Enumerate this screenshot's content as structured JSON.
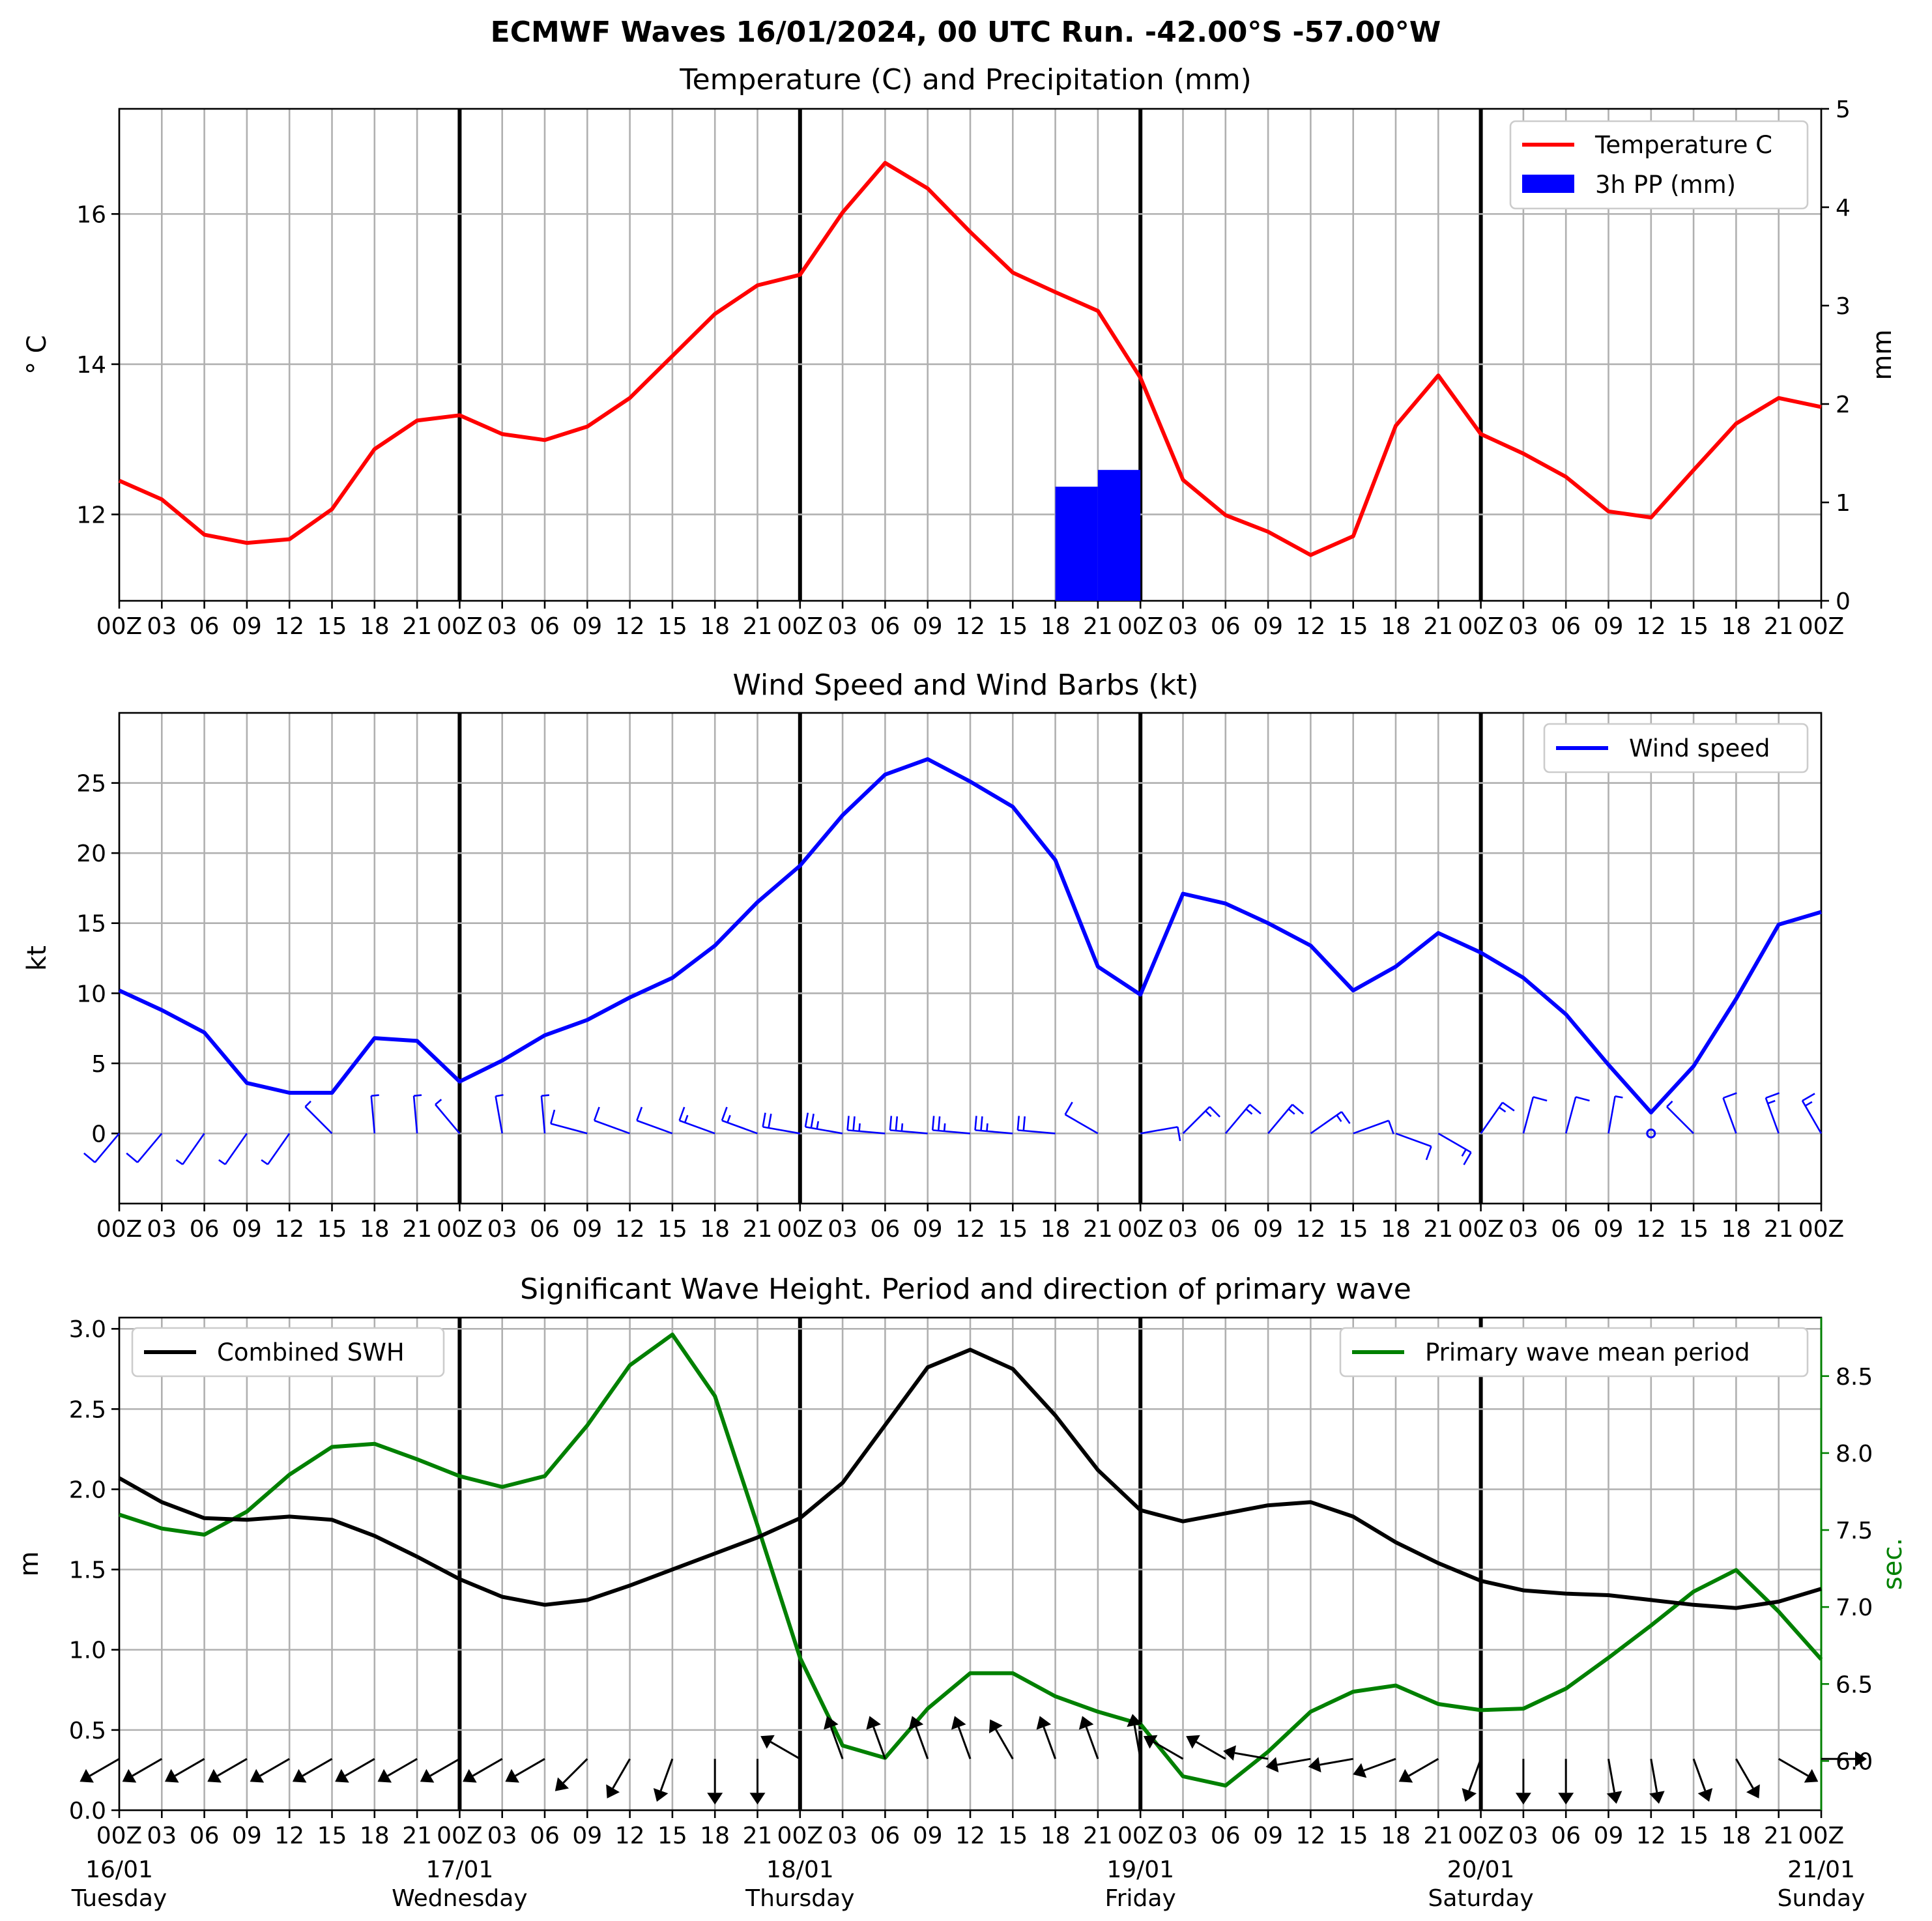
{
  "title": "ECMWF Waves 16/01/2024, 00 UTC Run. -42.00°S -57.00°W",
  "x_tick_labels": [
    "00Z",
    "03",
    "06",
    "09",
    "12",
    "15",
    "18",
    "21",
    "00Z",
    "03",
    "06",
    "09",
    "12",
    "15",
    "18",
    "21",
    "00Z",
    "03",
    "06",
    "09",
    "12",
    "15",
    "18",
    "21",
    "00Z",
    "03",
    "06",
    "09",
    "12",
    "15",
    "18",
    "21",
    "00Z",
    "03",
    "06",
    "09",
    "12",
    "15",
    "18",
    "21",
    "00Z"
  ],
  "day_labels": [
    {
      "date": "16/01",
      "day": "Tuesday"
    },
    {
      "date": "17/01",
      "day": "Wednesday"
    },
    {
      "date": "18/01",
      "day": "Thursday"
    },
    {
      "date": "19/01",
      "day": "Friday"
    },
    {
      "date": "20/01",
      "day": "Saturday"
    },
    {
      "date": "21/01",
      "day": "Sunday"
    }
  ],
  "colors": {
    "temperature": "#ff0000",
    "precipitation": "#0000ff",
    "wind": "#0000ff",
    "swh": "#000000",
    "period": "#008000"
  },
  "chart_data": [
    {
      "type": "line",
      "title": "Temperature (C) and Precipitation (mm)",
      "ylabel": "° C",
      "y2label": "mm",
      "ylim": [
        10.85,
        17.4
      ],
      "y2lim": [
        0,
        5
      ],
      "yticks": [
        "12",
        "14",
        "16"
      ],
      "y2ticks": [
        "0",
        "1",
        "2",
        "3",
        "4",
        "5"
      ],
      "legend_position": "upper right",
      "series": [
        {
          "name": "Temperature C",
          "values": [
            12.45,
            12.2,
            11.73,
            11.62,
            11.67,
            12.07,
            12.87,
            13.25,
            13.32,
            13.07,
            12.99,
            13.17,
            13.55,
            14.11,
            14.67,
            15.05,
            15.19,
            16.02,
            16.68,
            16.34,
            15.76,
            15.22,
            14.96,
            14.71,
            13.82,
            12.46,
            11.99,
            11.77,
            11.46,
            11.71,
            13.18,
            13.85,
            13.07,
            12.81,
            12.5,
            12.04,
            11.96,
            12.59,
            13.21,
            13.55,
            13.43
          ]
        },
        {
          "name": "3h PP (mm)",
          "type": "bar",
          "bars": [
            {
              "from_index": 22,
              "to_index": 23,
              "value": 1.16
            },
            {
              "from_index": 23,
              "to_index": 24,
              "value": 1.33
            }
          ]
        }
      ]
    },
    {
      "type": "line",
      "title": "Wind Speed and Wind Barbs (kt)",
      "ylabel": "kt",
      "ylim": [
        -5,
        30
      ],
      "yticks": [
        "0",
        "5",
        "10",
        "15",
        "20",
        "25"
      ],
      "legend_position": "upper right",
      "series": [
        {
          "name": "Wind speed",
          "values": [
            10.2,
            8.8,
            7.2,
            3.6,
            2.9,
            2.9,
            6.8,
            6.6,
            3.7,
            5.2,
            7.0,
            8.1,
            9.7,
            11.1,
            13.4,
            16.5,
            19.1,
            22.7,
            25.6,
            26.7,
            25.1,
            23.3,
            19.5,
            11.9,
            9.9,
            17.1,
            16.4,
            15.0,
            13.4,
            10.2,
            11.9,
            14.3,
            12.9,
            11.1,
            8.5,
            4.9,
            1.5,
            4.8,
            9.6,
            14.9,
            15.8
          ]
        }
      ],
      "barb_directions_deg": [
        220,
        220,
        215,
        215,
        215,
        315,
        355,
        355,
        320,
        350,
        355,
        285,
        290,
        290,
        290,
        290,
        280,
        280,
        275,
        275,
        275,
        275,
        275,
        300,
        80,
        45,
        40,
        40,
        55,
        70,
        110,
        120,
        35,
        15,
        15,
        10,
        null,
        315,
        340,
        340,
        330
      ]
    },
    {
      "type": "line",
      "title": "Significant Wave Height. Period and direction of primary wave",
      "ylabel": "m",
      "y2label": "sec.",
      "ylim": [
        0,
        3.07
      ],
      "y2lim": [
        5.68,
        8.88
      ],
      "yticks": [
        "0.0",
        "0.5",
        "1.0",
        "1.5",
        "2.0",
        "2.5",
        "3.0"
      ],
      "y2ticks": [
        "6.0",
        "6.5",
        "7.0",
        "7.5",
        "8.0",
        "8.5"
      ],
      "series": [
        {
          "name": "Combined SWH",
          "values": [
            2.07,
            1.92,
            1.82,
            1.81,
            1.83,
            1.81,
            1.71,
            1.58,
            1.44,
            1.33,
            1.28,
            1.31,
            1.4,
            1.5,
            1.6,
            1.7,
            1.82,
            2.04,
            2.4,
            2.76,
            2.87,
            2.75,
            2.46,
            2.12,
            1.87,
            1.8,
            1.85,
            1.9,
            1.92,
            1.83,
            1.67,
            1.54,
            1.43,
            1.37,
            1.35,
            1.34,
            1.31,
            1.28,
            1.26,
            1.3,
            1.38
          ],
          "legend_position": "upper left"
        },
        {
          "name": "Primary wave mean period",
          "values": [
            7.6,
            7.51,
            7.47,
            7.62,
            7.86,
            8.04,
            8.06,
            7.96,
            7.85,
            7.78,
            7.85,
            8.18,
            8.57,
            8.77,
            8.37,
            7.53,
            6.67,
            6.1,
            6.02,
            6.34,
            6.57,
            6.57,
            6.42,
            6.32,
            6.24,
            5.9,
            5.84,
            6.06,
            6.32,
            6.45,
            6.49,
            6.37,
            6.33,
            6.34,
            6.47,
            6.67,
            6.88,
            7.1,
            7.24,
            6.97,
            6.66
          ],
          "legend_position": "upper right"
        }
      ],
      "wave_direction_deg": [
        240,
        240,
        240,
        240,
        240,
        240,
        240,
        240,
        240,
        240,
        240,
        225,
        210,
        200,
        180,
        180,
        300,
        340,
        340,
        340,
        340,
        330,
        340,
        340,
        350,
        300,
        300,
        280,
        260,
        260,
        250,
        240,
        200,
        180,
        180,
        170,
        170,
        160,
        150,
        120,
        90
      ]
    }
  ]
}
